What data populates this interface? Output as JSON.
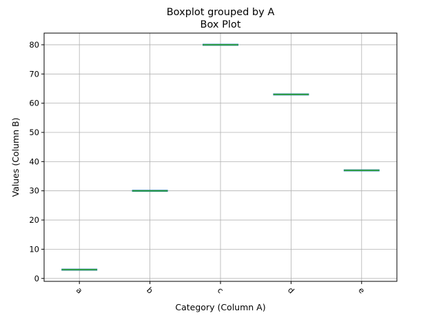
{
  "chart_data": {
    "type": "box",
    "suptitle": "Boxplot grouped by A",
    "title": "Box Plot",
    "xlabel": "Category (Column A)",
    "ylabel": "Values (Column B)",
    "categories": [
      "a",
      "b",
      "c",
      "d",
      "e"
    ],
    "values": [
      3,
      30,
      80,
      63,
      37
    ],
    "y_ticks": [
      0,
      10,
      20,
      30,
      40,
      50,
      60,
      70,
      80
    ],
    "ylim": [
      -1,
      84
    ],
    "grid": true,
    "x_tick_rotation": 45,
    "box_color": "#2ca02c",
    "grid_color": "#b0b0b0"
  }
}
